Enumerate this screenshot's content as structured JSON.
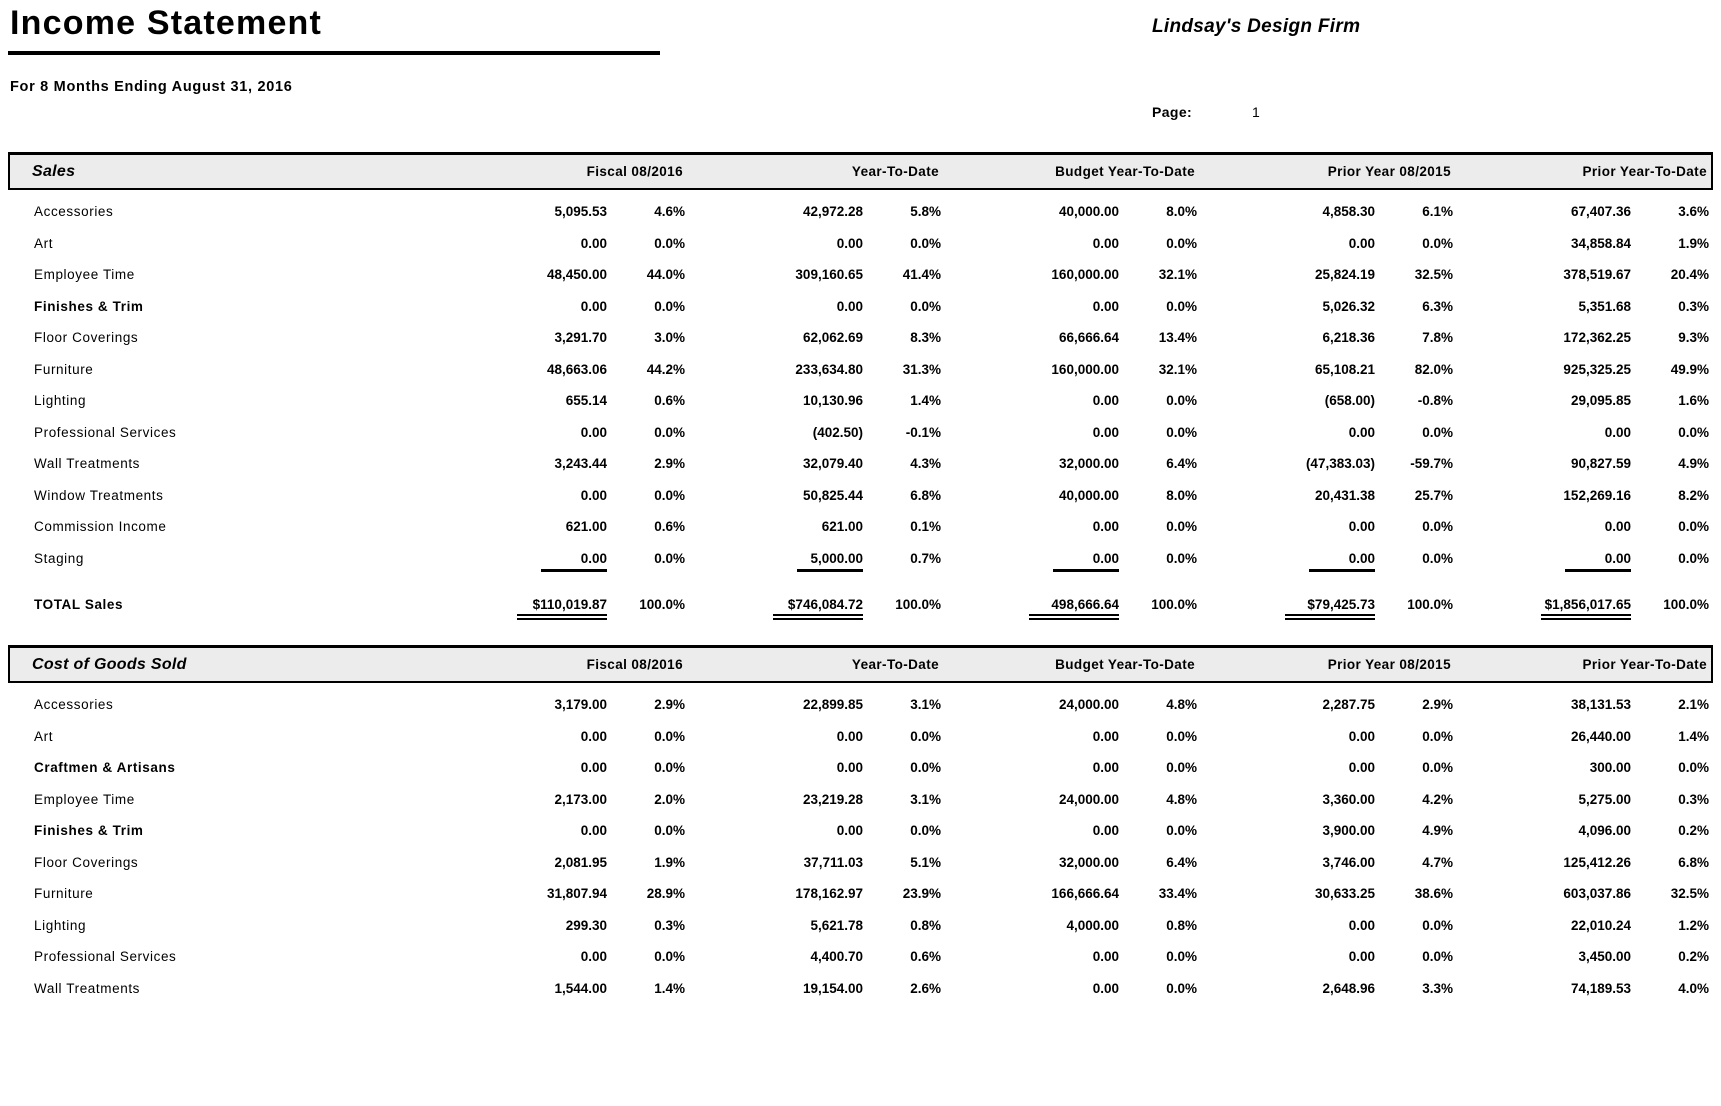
{
  "page": {
    "title": "Income Statement",
    "subtitle": "For 8 Months Ending August 31, 2016",
    "company": "Lindsay's Design Firm",
    "page_label": "Page:",
    "page_number": "1"
  },
  "colors": {
    "section_header_bg": "#ececec",
    "rule_color": "#000000",
    "text_color": "#000000"
  },
  "columns": [
    "Fiscal 08/2016",
    "Year-To-Date",
    "Budget Year-To-Date",
    "Prior Year 08/2015",
    "Prior Year-To-Date"
  ],
  "sections": [
    {
      "title": "Sales",
      "rows": [
        {
          "label": "Accessories",
          "values": [
            [
              "5,095.53",
              "4.6%"
            ],
            [
              "42,972.28",
              "5.8%"
            ],
            [
              "40,000.00",
              "8.0%"
            ],
            [
              "4,858.30",
              "6.1%"
            ],
            [
              "67,407.36",
              "3.6%"
            ]
          ]
        },
        {
          "label": "Art",
          "values": [
            [
              "0.00",
              "0.0%"
            ],
            [
              "0.00",
              "0.0%"
            ],
            [
              "0.00",
              "0.0%"
            ],
            [
              "0.00",
              "0.0%"
            ],
            [
              "34,858.84",
              "1.9%"
            ]
          ]
        },
        {
          "label": "Employee Time",
          "values": [
            [
              "48,450.00",
              "44.0%"
            ],
            [
              "309,160.65",
              "41.4%"
            ],
            [
              "160,000.00",
              "32.1%"
            ],
            [
              "25,824.19",
              "32.5%"
            ],
            [
              "378,519.67",
              "20.4%"
            ]
          ]
        },
        {
          "label": "Finishes & Trim",
          "bold": true,
          "values": [
            [
              "0.00",
              "0.0%"
            ],
            [
              "0.00",
              "0.0%"
            ],
            [
              "0.00",
              "0.0%"
            ],
            [
              "5,026.32",
              "6.3%"
            ],
            [
              "5,351.68",
              "0.3%"
            ]
          ]
        },
        {
          "label": "Floor Coverings",
          "values": [
            [
              "3,291.70",
              "3.0%"
            ],
            [
              "62,062.69",
              "8.3%"
            ],
            [
              "66,666.64",
              "13.4%"
            ],
            [
              "6,218.36",
              "7.8%"
            ],
            [
              "172,362.25",
              "9.3%"
            ]
          ]
        },
        {
          "label": "Furniture",
          "values": [
            [
              "48,663.06",
              "44.2%"
            ],
            [
              "233,634.80",
              "31.3%"
            ],
            [
              "160,000.00",
              "32.1%"
            ],
            [
              "65,108.21",
              "82.0%"
            ],
            [
              "925,325.25",
              "49.9%"
            ]
          ]
        },
        {
          "label": "Lighting",
          "values": [
            [
              "655.14",
              "0.6%"
            ],
            [
              "10,130.96",
              "1.4%"
            ],
            [
              "0.00",
              "0.0%"
            ],
            [
              "(658.00)",
              "-0.8%"
            ],
            [
              "29,095.85",
              "1.6%"
            ]
          ]
        },
        {
          "label": "Professional Services",
          "values": [
            [
              "0.00",
              "0.0%"
            ],
            [
              "(402.50)",
              "-0.1%"
            ],
            [
              "0.00",
              "0.0%"
            ],
            [
              "0.00",
              "0.0%"
            ],
            [
              "0.00",
              "0.0%"
            ]
          ]
        },
        {
          "label": "Wall Treatments",
          "values": [
            [
              "3,243.44",
              "2.9%"
            ],
            [
              "32,079.40",
              "4.3%"
            ],
            [
              "32,000.00",
              "6.4%"
            ],
            [
              "(47,383.03)",
              "-59.7%"
            ],
            [
              "90,827.59",
              "4.9%"
            ]
          ]
        },
        {
          "label": "Window Treatments",
          "values": [
            [
              "0.00",
              "0.0%"
            ],
            [
              "50,825.44",
              "6.8%"
            ],
            [
              "40,000.00",
              "8.0%"
            ],
            [
              "20,431.38",
              "25.7%"
            ],
            [
              "152,269.16",
              "8.2%"
            ]
          ]
        },
        {
          "label": "Commission Income",
          "values": [
            [
              "621.00",
              "0.6%"
            ],
            [
              "621.00",
              "0.1%"
            ],
            [
              "0.00",
              "0.0%"
            ],
            [
              "0.00",
              "0.0%"
            ],
            [
              "0.00",
              "0.0%"
            ]
          ]
        },
        {
          "label": "Staging",
          "underline": true,
          "values": [
            [
              "0.00",
              "0.0%"
            ],
            [
              "5,000.00",
              "0.7%"
            ],
            [
              "0.00",
              "0.0%"
            ],
            [
              "0.00",
              "0.0%"
            ],
            [
              "0.00",
              "0.0%"
            ]
          ]
        }
      ],
      "total": {
        "label": "TOTAL Sales",
        "values": [
          [
            "$110,019.87",
            "100.0%"
          ],
          [
            "$746,084.72",
            "100.0%"
          ],
          [
            "498,666.64",
            "100.0%"
          ],
          [
            "$79,425.73",
            "100.0%"
          ],
          [
            "$1,856,017.65",
            "100.0%"
          ]
        ]
      }
    },
    {
      "title": "Cost of Goods Sold",
      "rows": [
        {
          "label": "Accessories",
          "values": [
            [
              "3,179.00",
              "2.9%"
            ],
            [
              "22,899.85",
              "3.1%"
            ],
            [
              "24,000.00",
              "4.8%"
            ],
            [
              "2,287.75",
              "2.9%"
            ],
            [
              "38,131.53",
              "2.1%"
            ]
          ]
        },
        {
          "label": "Art",
          "values": [
            [
              "0.00",
              "0.0%"
            ],
            [
              "0.00",
              "0.0%"
            ],
            [
              "0.00",
              "0.0%"
            ],
            [
              "0.00",
              "0.0%"
            ],
            [
              "26,440.00",
              "1.4%"
            ]
          ]
        },
        {
          "label": "Craftmen & Artisans",
          "bold": true,
          "values": [
            [
              "0.00",
              "0.0%"
            ],
            [
              "0.00",
              "0.0%"
            ],
            [
              "0.00",
              "0.0%"
            ],
            [
              "0.00",
              "0.0%"
            ],
            [
              "300.00",
              "0.0%"
            ]
          ]
        },
        {
          "label": "Employee Time",
          "values": [
            [
              "2,173.00",
              "2.0%"
            ],
            [
              "23,219.28",
              "3.1%"
            ],
            [
              "24,000.00",
              "4.8%"
            ],
            [
              "3,360.00",
              "4.2%"
            ],
            [
              "5,275.00",
              "0.3%"
            ]
          ]
        },
        {
          "label": "Finishes & Trim",
          "bold": true,
          "values": [
            [
              "0.00",
              "0.0%"
            ],
            [
              "0.00",
              "0.0%"
            ],
            [
              "0.00",
              "0.0%"
            ],
            [
              "3,900.00",
              "4.9%"
            ],
            [
              "4,096.00",
              "0.2%"
            ]
          ]
        },
        {
          "label": "Floor Coverings",
          "values": [
            [
              "2,081.95",
              "1.9%"
            ],
            [
              "37,711.03",
              "5.1%"
            ],
            [
              "32,000.00",
              "6.4%"
            ],
            [
              "3,746.00",
              "4.7%"
            ],
            [
              "125,412.26",
              "6.8%"
            ]
          ]
        },
        {
          "label": "Furniture",
          "values": [
            [
              "31,807.94",
              "28.9%"
            ],
            [
              "178,162.97",
              "23.9%"
            ],
            [
              "166,666.64",
              "33.4%"
            ],
            [
              "30,633.25",
              "38.6%"
            ],
            [
              "603,037.86",
              "32.5%"
            ]
          ]
        },
        {
          "label": "Lighting",
          "values": [
            [
              "299.30",
              "0.3%"
            ],
            [
              "5,621.78",
              "0.8%"
            ],
            [
              "4,000.00",
              "0.8%"
            ],
            [
              "0.00",
              "0.0%"
            ],
            [
              "22,010.24",
              "1.2%"
            ]
          ]
        },
        {
          "label": "Professional Services",
          "values": [
            [
              "0.00",
              "0.0%"
            ],
            [
              "4,400.70",
              "0.6%"
            ],
            [
              "0.00",
              "0.0%"
            ],
            [
              "0.00",
              "0.0%"
            ],
            [
              "3,450.00",
              "0.2%"
            ]
          ]
        },
        {
          "label": "Wall Treatments",
          "values": [
            [
              "1,544.00",
              "1.4%"
            ],
            [
              "19,154.00",
              "2.6%"
            ],
            [
              "0.00",
              "0.0%"
            ],
            [
              "2,648.96",
              "3.3%"
            ],
            [
              "74,189.53",
              "4.0%"
            ]
          ]
        }
      ]
    }
  ]
}
